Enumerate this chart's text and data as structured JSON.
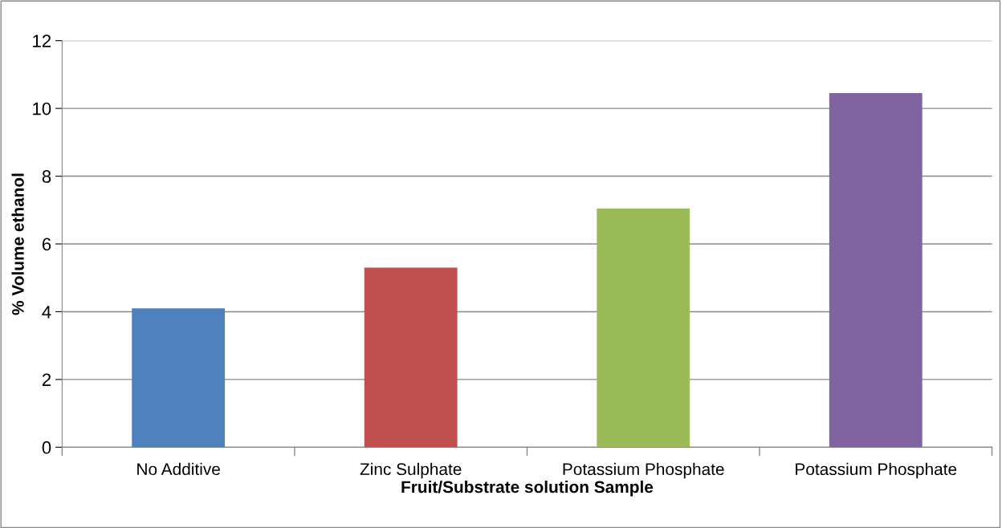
{
  "chart_data": {
    "type": "bar",
    "xlabel": "Fruit/Substrate solution Sample",
    "ylabel": "% Volume ethanol",
    "categories": [
      "No Additive",
      "Zinc Sulphate",
      "Potassium Phosphate",
      "Potassium Phosphate"
    ],
    "values": [
      4.1,
      5.3,
      7.05,
      10.45
    ],
    "colors": [
      "#4f81bd",
      "#c0504d",
      "#9bbb59",
      "#8064a2"
    ],
    "ylim": [
      0,
      12
    ],
    "yticks": [
      0,
      2,
      4,
      6,
      8,
      10,
      12
    ],
    "grid": "y",
    "legend": false
  }
}
